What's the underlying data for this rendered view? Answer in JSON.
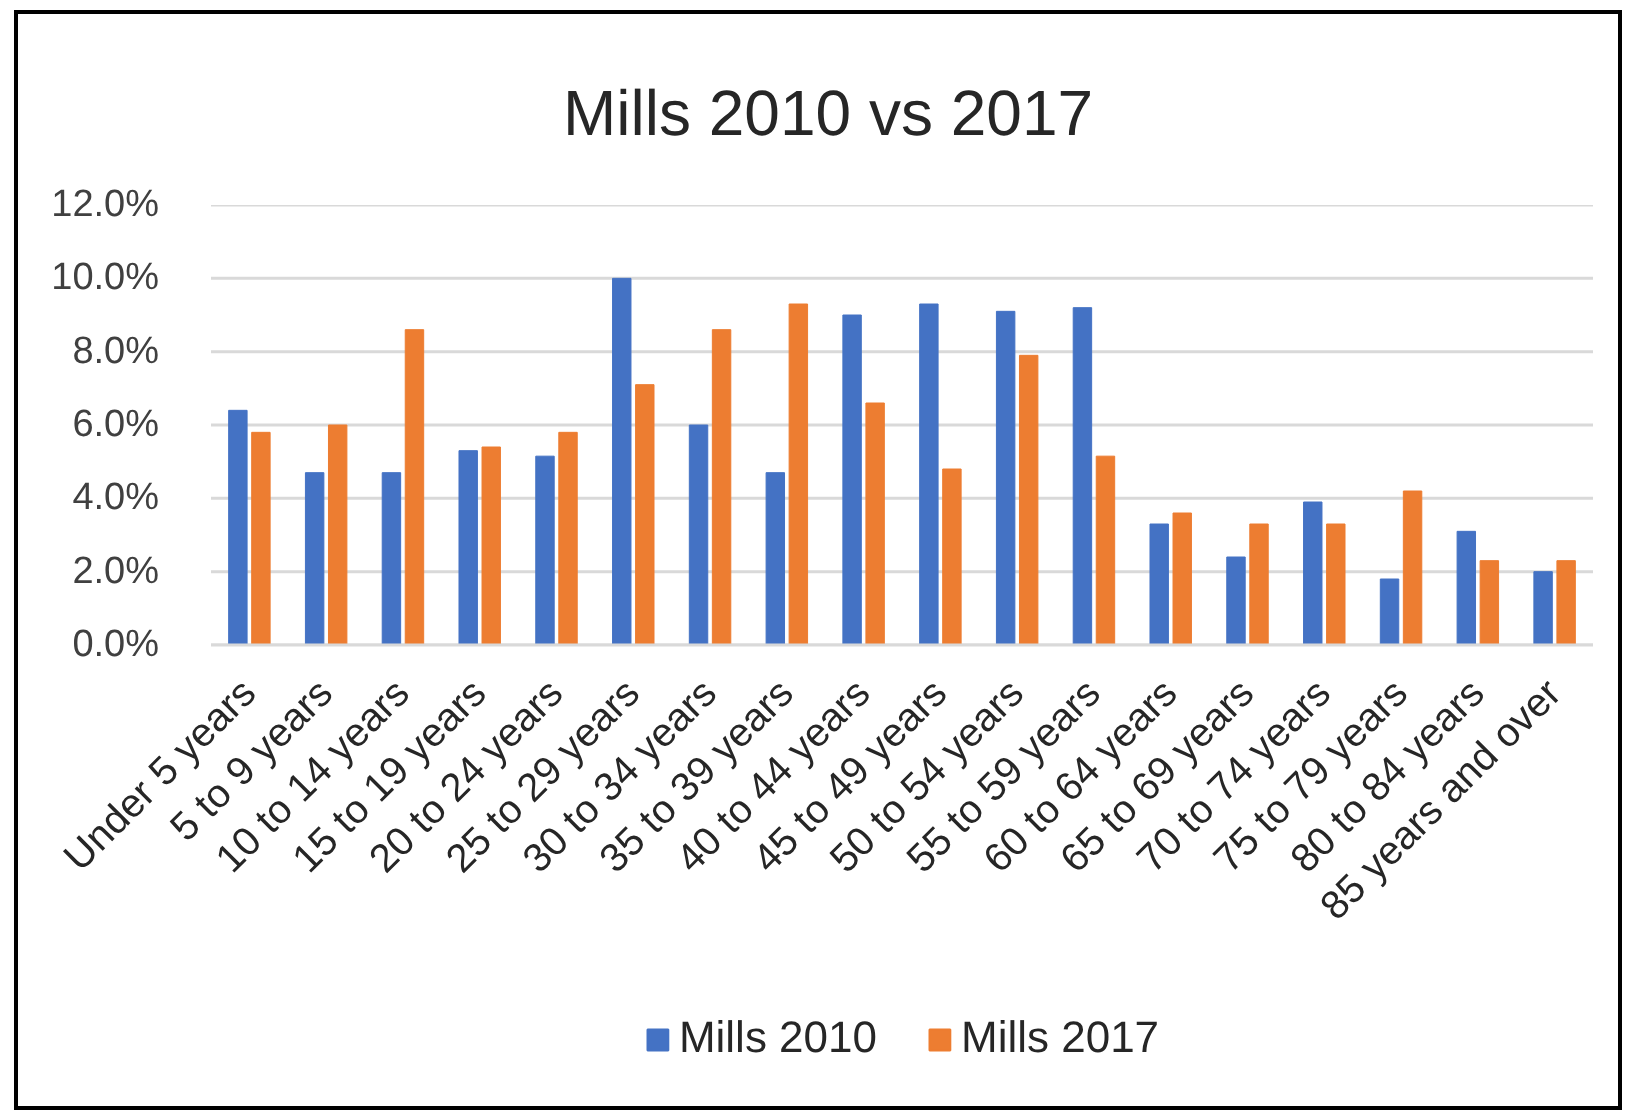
{
  "chart_data": {
    "type": "bar",
    "title": "Mills 2010 vs 2017",
    "categories": [
      "Under 5 years",
      "5 to 9 years",
      "10 to 14 years",
      "15 to 19 years",
      "20 to 24 years",
      "25 to 29 years",
      "30 to 34 years",
      "35 to 39 years",
      "40 to 44 years",
      "45 to 49 years",
      "50 to 54 years",
      "55 to 59 years",
      "60 to 64 years",
      "65 to 69 years",
      "70 to 74 years",
      "75 to 79 years",
      "80 to 84 years",
      "85 years and over"
    ],
    "series": [
      {
        "name": "Mills 2010",
        "color": "#4472c4",
        "values": [
          6.4,
          4.7,
          4.7,
          5.3,
          5.15,
          10.0,
          6.0,
          4.7,
          9.0,
          9.3,
          9.1,
          9.2,
          3.3,
          2.4,
          3.9,
          1.8,
          3.1,
          2.0
        ]
      },
      {
        "name": "Mills 2017",
        "color": "#ed7d31",
        "values": [
          5.8,
          6.0,
          8.6,
          5.4,
          5.8,
          7.1,
          8.6,
          9.3,
          6.6,
          4.8,
          7.9,
          5.15,
          3.6,
          3.3,
          3.3,
          4.2,
          2.3,
          2.3
        ]
      }
    ],
    "ylim": [
      0,
      12
    ],
    "yticks": [
      {
        "value": 0,
        "label": "0.0%"
      },
      {
        "value": 2,
        "label": "2.0%"
      },
      {
        "value": 4,
        "label": "4.0%"
      },
      {
        "value": 6,
        "label": "6.0%"
      },
      {
        "value": 8,
        "label": "8.0%"
      },
      {
        "value": 10,
        "label": "10.0%"
      },
      {
        "value": 12,
        "label": "12.0%"
      }
    ],
    "grid": "y",
    "legend": "bottom"
  }
}
